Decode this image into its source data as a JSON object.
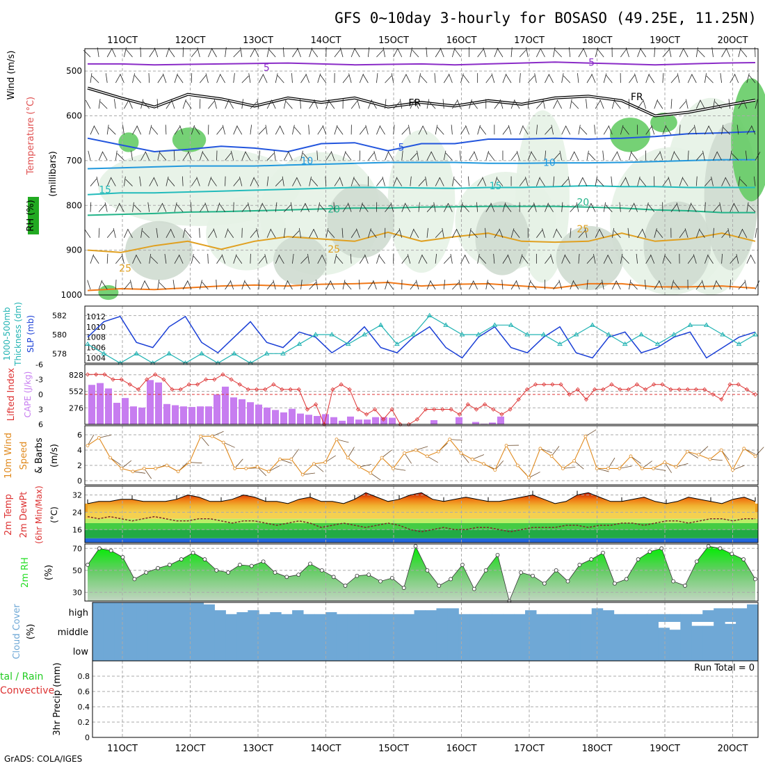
{
  "title": "GFS 0~10day 3-hourly for BOSASO (49.25E, 11.25N)",
  "credit": "GrADS: COLA/IGES",
  "time_axis": {
    "labels": [
      "11OCT",
      "12OCT",
      "13OCT",
      "14OCT",
      "15OCT",
      "16OCT",
      "17OCT",
      "18OCT",
      "19OCT",
      "20OCT"
    ],
    "start_day": 10.45,
    "end_day": 20.3
  },
  "colors": {
    "grid": "#aaaaaa",
    "rh_light": "#e6f2e6",
    "rh_mid": "#cfdcd0",
    "rh_green": "#66cc66",
    "slp": "#1a3fd6",
    "thickness": "#22b3b3",
    "cape": "#c77df0",
    "lifted_index": "#dd3333",
    "wind": "#e08a1e",
    "cloud": "#6fa8d6",
    "rh2m": "#22dd22"
  },
  "chart_data": [
    {
      "type": "heatmap",
      "panel": "upper-air",
      "ylabel": "(millibars)",
      "side_labels": [
        "Wind (m/s)",
        "Temperature (°C)",
        "RH (%)"
      ],
      "ylim": [
        1000,
        450
      ],
      "y_ticks": [
        500,
        600,
        700,
        800,
        900,
        1000
      ],
      "contour_labels": [
        "-5",
        "5",
        "FR",
        "10",
        "15",
        "20",
        "25"
      ],
      "isotherms": [
        {
          "name": "-5",
          "color": "#8a2bc7",
          "y": [
            484,
            484,
            486,
            485,
            484,
            483,
            482,
            484,
            486,
            485,
            484,
            486,
            484,
            482,
            480,
            482,
            484,
            486,
            484,
            482,
            481
          ]
        },
        {
          "name": "0 (FR)",
          "color": "#000000",
          "y": [
            538,
            560,
            580,
            552,
            562,
            578,
            560,
            570,
            560,
            580,
            570,
            578,
            566,
            574,
            560,
            556,
            566,
            600,
            592,
            578,
            565
          ]
        },
        {
          "name": "5",
          "color": "#2255dd",
          "y": [
            650,
            665,
            680,
            675,
            668,
            672,
            680,
            662,
            660,
            678,
            662,
            662,
            652,
            652,
            650,
            652,
            650,
            646,
            640,
            638,
            635
          ]
        },
        {
          "name": "10",
          "color": "#2299dd",
          "y": [
            718,
            716,
            714,
            712,
            712,
            712,
            710,
            708,
            706,
            704,
            704,
            704,
            706,
            706,
            705,
            705,
            704,
            702,
            700,
            698,
            698
          ]
        },
        {
          "name": "15",
          "color": "#22bbbb",
          "y": [
            776,
            772,
            772,
            770,
            768,
            766,
            764,
            762,
            760,
            760,
            761,
            762,
            760,
            760,
            758,
            756,
            758,
            758,
            760,
            760,
            760
          ]
        },
        {
          "name": "20",
          "color": "#22b388",
          "y": [
            822,
            820,
            818,
            815,
            814,
            812,
            810,
            808,
            806,
            806,
            804,
            803,
            802,
            802,
            802,
            804,
            806,
            810,
            812,
            816,
            816
          ]
        },
        {
          "name": "25",
          "color": "#e0a020",
          "y": [
            900,
            905,
            890,
            880,
            898,
            880,
            870,
            875,
            880,
            860,
            880,
            870,
            862,
            880,
            882,
            880,
            862,
            880,
            875,
            862,
            880
          ]
        },
        {
          "name": "30",
          "color": "#f07818",
          "y": [
            990,
            986,
            988,
            984,
            980,
            978,
            980,
            976,
            975,
            972,
            980,
            976,
            975,
            980,
            985,
            975,
            975,
            982,
            982,
            980,
            985
          ]
        }
      ]
    },
    {
      "type": "line",
      "panel": "pressure",
      "series": [
        {
          "name": "SLP (mb)",
          "axis": "right",
          "values": [
            1008,
            1011,
            1012,
            1007,
            1006,
            1010,
            1012,
            1007,
            1005,
            1008,
            1011,
            1007,
            1006,
            1009,
            1008,
            1005,
            1007,
            1010,
            1006,
            1005,
            1008,
            1010,
            1006,
            1004,
            1008,
            1010,
            1006,
            1005,
            1008,
            1010,
            1005,
            1004,
            1008,
            1009,
            1005,
            1006,
            1008,
            1009,
            1004,
            1006,
            1008,
            1009
          ]
        },
        {
          "name": "1000-500mb Thickness (dm)",
          "axis": "left",
          "values": [
            579,
            578,
            577,
            578,
            577,
            578,
            577,
            578,
            577,
            578,
            577,
            578,
            578,
            579,
            580,
            580,
            579,
            580,
            581,
            579,
            580,
            582,
            581,
            580,
            580,
            581,
            581,
            580,
            580,
            579,
            580,
            581,
            580,
            579,
            580,
            579,
            580,
            581,
            581,
            580,
            579,
            580
          ]
        }
      ],
      "ylim_left": [
        577,
        583
      ],
      "ylim_right": [
        1003,
        1014
      ],
      "yticks_left": [
        578,
        580,
        582
      ],
      "yticks_right": [
        1004,
        1006,
        1008,
        1010,
        1012
      ],
      "ylabels": [
        "1000-500mb",
        "Thickness (dm)",
        "SLP (mb)"
      ]
    },
    {
      "type": "bar",
      "panel": "stability",
      "series": [
        {
          "name": "CAPE (J/kg)",
          "values": [
            660,
            690,
            600,
            360,
            440,
            300,
            280,
            740,
            700,
            340,
            320,
            300,
            290,
            300,
            300,
            500,
            630,
            450,
            420,
            370,
            330,
            280,
            240,
            200,
            260,
            180,
            160,
            140,
            170,
            120,
            60,
            130,
            80,
            80,
            120,
            120,
            110,
            0,
            0,
            0,
            0,
            70,
            0,
            0,
            120,
            0,
            40,
            10,
            30,
            130,
            0,
            0,
            0,
            0,
            0,
            0,
            0,
            0,
            0,
            0,
            0,
            0,
            0,
            0,
            0,
            0,
            0,
            0,
            0,
            0,
            0,
            0,
            0,
            0,
            0,
            0,
            0,
            0,
            0,
            0
          ]
        },
        {
          "name": "Lifted Index",
          "values": [
            -4,
            -4,
            -4,
            -3,
            -3,
            -2,
            -1,
            -3,
            -4,
            -3,
            -1,
            -1,
            -2,
            -2,
            -3,
            -3,
            -4,
            -3,
            -2,
            -1,
            -1,
            -1,
            -2,
            -1,
            -1,
            -1,
            3,
            2,
            6,
            -1,
            -2,
            -1,
            3,
            4,
            3,
            5,
            3,
            6,
            6,
            5,
            3,
            3,
            3,
            3,
            4,
            2,
            3,
            2,
            3,
            4,
            3,
            1,
            -1,
            -2,
            -2,
            -2,
            -2,
            0,
            -1,
            1,
            -1,
            -1,
            -2,
            -1,
            -1,
            -2,
            -1,
            -2,
            -2,
            -1,
            -1,
            -1,
            -1,
            -1,
            0,
            1,
            -2,
            -2,
            -1,
            0
          ]
        }
      ],
      "ylim_cape": [
        0,
        1000
      ],
      "yticks_cape": [
        276,
        552,
        828
      ],
      "ylim_li": [
        6,
        -6
      ],
      "yticks_li": [
        -6,
        -3,
        0,
        3,
        6
      ],
      "ylabels": [
        "Lifted Index",
        "CAPE (J/kg)"
      ]
    },
    {
      "type": "line",
      "panel": "wind10m",
      "series": [
        {
          "name": "10m Wind Speed (m/s)",
          "values": [
            4.6,
            5.6,
            3.0,
            1.6,
            1.2,
            1.6,
            1.6,
            2.0,
            1.2,
            2.4,
            5.8,
            5.8,
            5.0,
            1.6,
            1.6,
            1.8,
            1.2,
            2.8,
            2.8,
            0.8,
            2.2,
            2.4,
            5.4,
            3.0,
            1.8,
            1.0,
            3.0,
            1.6,
            3.6,
            4.0,
            3.2,
            3.8,
            5.4,
            3.6,
            2.8,
            2.2,
            1.4,
            4.6,
            2.0,
            0.4,
            4.2,
            3.2,
            1.6,
            2.6,
            5.8,
            1.6,
            1.6,
            1.6,
            3.2,
            1.6,
            1.6,
            2.4,
            1.8,
            3.8,
            3.4,
            2.8,
            4.0,
            1.4,
            4.2,
            3.2
          ]
        }
      ],
      "ylim": [
        0,
        7
      ],
      "yticks": [
        0,
        2,
        4,
        6
      ],
      "ylabels": [
        "10m Wind",
        "Speed",
        "& Barbs",
        "(m/s)"
      ]
    },
    {
      "type": "area",
      "panel": "temperature",
      "series": [
        {
          "name": "2m Temp",
          "values": [
            28,
            29,
            29,
            30,
            30,
            29,
            29,
            29,
            30,
            32,
            31,
            29,
            29,
            30,
            32,
            31,
            29,
            29,
            28,
            30,
            31,
            29,
            29,
            28,
            30,
            33,
            31,
            29,
            30,
            32,
            33,
            30,
            29,
            30,
            31,
            30,
            29,
            29,
            30,
            31,
            32,
            30,
            28,
            29,
            32,
            33,
            31,
            29,
            29,
            30,
            31,
            29,
            28,
            29,
            31,
            30,
            29,
            28,
            30,
            31,
            29
          ]
        },
        {
          "name": "2m DewPt",
          "values": [
            22,
            21,
            22,
            21,
            20,
            21,
            22,
            21,
            20,
            20,
            21,
            21,
            20,
            19,
            20,
            20,
            19,
            18,
            19,
            20,
            19,
            17,
            18,
            19,
            18,
            17,
            18,
            19,
            18,
            16,
            15,
            16,
            17,
            16,
            16,
            17,
            17,
            16,
            15,
            16,
            17,
            17,
            17,
            18,
            18,
            17,
            18,
            18,
            19,
            19,
            18,
            19,
            20,
            20,
            19,
            20,
            21,
            21,
            20,
            21,
            21
          ]
        }
      ],
      "ylim": [
        10,
        36
      ],
      "yticks": [
        16,
        24,
        32
      ],
      "ylabels": [
        "2m Temp",
        "2m DewPt",
        "(6hr Min/Max)",
        "(°C)"
      ]
    },
    {
      "type": "area",
      "panel": "rh2m",
      "series": [
        {
          "name": "2m RH (%)",
          "values": [
            55,
            70,
            68,
            62,
            42,
            48,
            52,
            55,
            60,
            66,
            60,
            50,
            48,
            55,
            54,
            58,
            48,
            44,
            46,
            56,
            50,
            44,
            36,
            45,
            46,
            40,
            43,
            34,
            72,
            50,
            36,
            42,
            55,
            33,
            50,
            64,
            22,
            48,
            45,
            38,
            50,
            40,
            55,
            60,
            66,
            38,
            42,
            60,
            67,
            70,
            40,
            36,
            58,
            72,
            70,
            65,
            60,
            42
          ]
        }
      ],
      "ylim": [
        22,
        74
      ],
      "yticks": [
        30,
        50,
        70
      ],
      "ylabels": [
        "2m RH",
        "(%)"
      ]
    },
    {
      "type": "heatmap",
      "panel": "cloud",
      "rows": [
        "high",
        "middle",
        "low"
      ],
      "series": [
        {
          "name": "high",
          "values": [
            100,
            100,
            100,
            100,
            100,
            100,
            100,
            100,
            100,
            100,
            90,
            60,
            40,
            50,
            60,
            40,
            50,
            40,
            60,
            40,
            40,
            50,
            40,
            40,
            40,
            40,
            40,
            40,
            40,
            60,
            60,
            70,
            70,
            40,
            40,
            40,
            40,
            40,
            40,
            60,
            40,
            40,
            40,
            40,
            40,
            70,
            60,
            40,
            40,
            40,
            40,
            40,
            40,
            40,
            40,
            60,
            70,
            70,
            70,
            90
          ]
        },
        {
          "name": "middle",
          "values": [
            100,
            100,
            100,
            100,
            100,
            100,
            100,
            100,
            100,
            100,
            100,
            100,
            100,
            100,
            100,
            100,
            100,
            100,
            100,
            100,
            100,
            100,
            100,
            100,
            100,
            100,
            100,
            100,
            100,
            100,
            100,
            100,
            100,
            100,
            100,
            100,
            100,
            100,
            100,
            100,
            100,
            100,
            100,
            100,
            100,
            100,
            100,
            100,
            100,
            100,
            100,
            70,
            60,
            100,
            80,
            80,
            100,
            90,
            100,
            100
          ]
        },
        {
          "name": "low",
          "values": [
            100,
            100,
            100,
            100,
            100,
            100,
            100,
            100,
            100,
            100,
            100,
            100,
            100,
            100,
            100,
            100,
            100,
            100,
            100,
            100,
            100,
            100,
            100,
            100,
            100,
            100,
            100,
            100,
            100,
            100,
            100,
            100,
            100,
            100,
            100,
            100,
            100,
            100,
            100,
            100,
            100,
            100,
            100,
            100,
            100,
            100,
            100,
            100,
            100,
            100,
            100,
            100,
            100,
            100,
            100,
            100,
            100,
            100,
            100,
            100
          ]
        }
      ],
      "ylabels": [
        "Cloud Cover",
        "(%)"
      ]
    },
    {
      "type": "bar",
      "panel": "precip",
      "title": "Run Total = 0",
      "series": [
        {
          "name": "Total / Rain",
          "values": []
        },
        {
          "name": "Convective",
          "values": []
        }
      ],
      "ylim": [
        0,
        1.0
      ],
      "yticks": [
        0,
        0.2,
        0.4,
        0.6,
        0.8
      ],
      "ytick_labels": [
        "0",
        "0.2",
        "0.4",
        "0.6",
        "0.8"
      ],
      "ylabels": [
        "Total / Rain",
        "Convective",
        "3hr Precip (mm)"
      ]
    }
  ]
}
